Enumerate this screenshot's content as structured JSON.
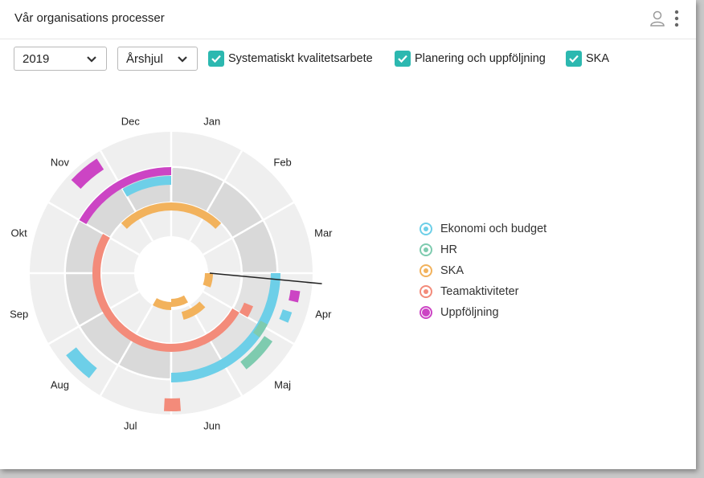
{
  "header": {
    "title": "Vår organisations processer"
  },
  "toolbar": {
    "year": "2019",
    "view": "Årshjul",
    "filters": [
      {
        "label": "Systematiskt kvalitetsarbete",
        "checked": true
      },
      {
        "label": "Planering och uppföljning",
        "checked": true
      },
      {
        "label": "SKA",
        "checked": true
      }
    ]
  },
  "wheel": {
    "months": [
      "Jan",
      "Feb",
      "Mar",
      "Apr",
      "Maj",
      "Jun",
      "Jul",
      "Aug",
      "Sep",
      "Okt",
      "Nov",
      "Dec"
    ]
  },
  "legend": [
    {
      "label": "Ekonomi och budget",
      "color": "#6dcfe8",
      "selected": false
    },
    {
      "label": "HR",
      "color": "#7ecbaf",
      "selected": false
    },
    {
      "label": "SKA",
      "color": "#f2b25c",
      "selected": false
    },
    {
      "label": "Teamaktiviteter",
      "color": "#f38b7a",
      "selected": false
    },
    {
      "label": "Uppföljning",
      "color": "#cc44c4",
      "selected": true
    }
  ]
}
